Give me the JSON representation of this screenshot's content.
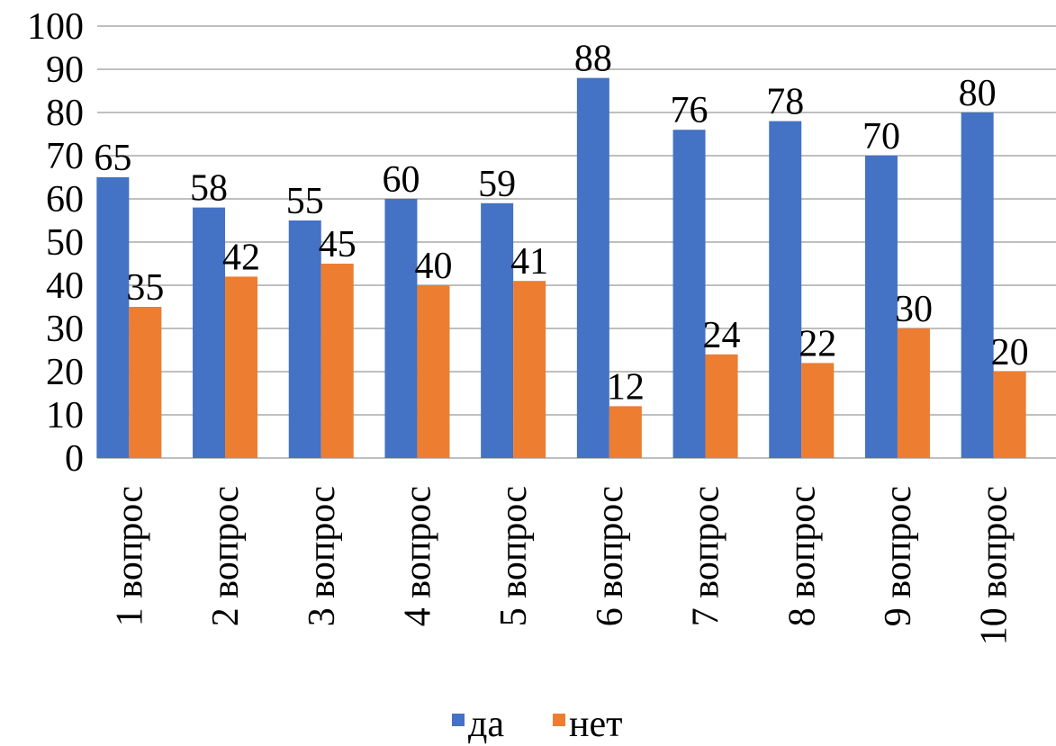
{
  "chart_data": {
    "type": "bar",
    "categories": [
      "1 вопрос",
      "2 вопрос",
      "3 вопрос",
      "4 вопрос",
      "5 вопрос",
      "6 вопрос",
      "7 вопрос",
      "8 вопрос",
      "9 вопрос",
      "10 вопрос"
    ],
    "series": [
      {
        "name": "да",
        "color": "#4472C4",
        "values": [
          65,
          58,
          55,
          60,
          59,
          88,
          76,
          78,
          70,
          80
        ]
      },
      {
        "name": "нет",
        "color": "#ED7D31",
        "values": [
          35,
          42,
          45,
          40,
          41,
          12,
          24,
          22,
          30,
          20
        ]
      }
    ],
    "title": "",
    "xlabel": "",
    "ylabel": "",
    "ylim": [
      0,
      100
    ],
    "yticks": [
      0,
      10,
      20,
      30,
      40,
      50,
      60,
      70,
      80,
      90,
      100
    ],
    "grid": true,
    "legend_position": "bottom",
    "data_labels": true
  }
}
